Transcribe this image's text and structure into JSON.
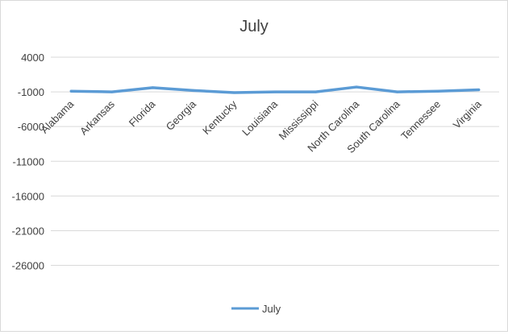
{
  "chart_data": {
    "type": "line",
    "title": "July",
    "xlabel": "",
    "ylabel": "",
    "categories": [
      "Alabama",
      "Arkansas",
      "Florida",
      "Georgia",
      "Kentucky",
      "Louisiana",
      "Mississippi",
      "North Carolina",
      "South Carolina",
      "Tennessee",
      "Virginia"
    ],
    "series": [
      {
        "name": "July",
        "values": [
          -900,
          -1000,
          -400,
          -800,
          -1100,
          -1000,
          -1000,
          -300,
          -1000,
          -900,
          -700
        ],
        "color": "#5b9bd5"
      }
    ],
    "yticks": [
      4000,
      -1000,
      -6000,
      -11000,
      -16000,
      -21000,
      -26000
    ],
    "ylim": [
      -30000,
      4000
    ],
    "grid": true,
    "legend_position": "bottom"
  }
}
